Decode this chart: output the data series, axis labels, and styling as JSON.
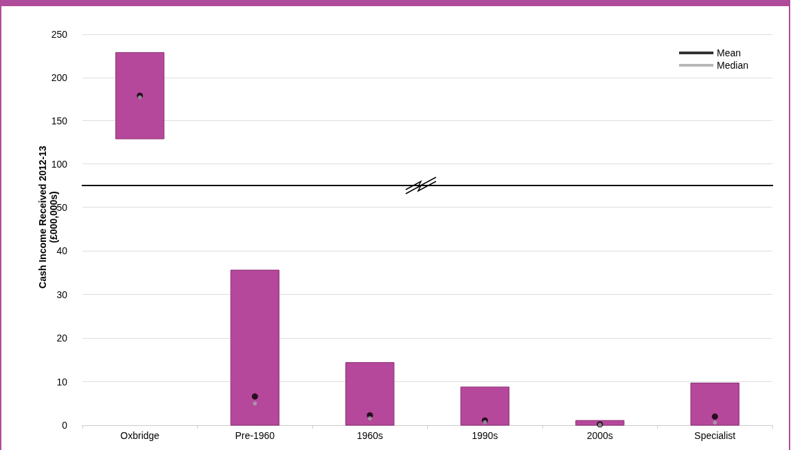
{
  "chart_data": [
    {
      "type": "bar",
      "categories": [
        "Oxbridge",
        "Pre-1960",
        "1960s",
        "1990s",
        "2000s",
        "Specialist"
      ],
      "tick_labels": "y",
      "ylim": [
        75,
        250
      ],
      "yticks": [
        100,
        150,
        200,
        250
      ],
      "grid": "y",
      "legend": "top right",
      "series": [
        {
          "type": "bar",
          "color": "#b5489b",
          "base": [
            129,
            null,
            null,
            null,
            null,
            null
          ],
          "values": [
            100,
            null,
            null,
            null,
            null,
            null
          ]
        },
        {
          "type": "scatter",
          "name": "Mean",
          "color": "#000000",
          "marker": "circle",
          "x": [
            "Oxbridge"
          ],
          "values": [
            179
          ]
        },
        {
          "type": "scatter",
          "name": "Median",
          "color": "#a6a6a6",
          "marker": "circle",
          "x": [
            "Oxbridge"
          ],
          "values": [
            177
          ]
        }
      ]
    },
    {
      "type": "bar",
      "categories": [
        "Oxbridge",
        "Pre-1960",
        "1960s",
        "1990s",
        "2000s",
        "Specialist"
      ],
      "ylabel": "Cash Income Received 2012-13 (£000,000s)",
      "ylim": [
        0,
        55
      ],
      "yticks": [
        0,
        10,
        20,
        30,
        40,
        50
      ],
      "grid": "y",
      "series": [
        {
          "type": "bar",
          "color": "#b5489b",
          "base": [
            null,
            0,
            0,
            0,
            0,
            0
          ],
          "values": [
            null,
            35.6,
            14.4,
            8.8,
            1.1,
            9.7
          ]
        },
        {
          "type": "scatter",
          "color": "#000000",
          "marker": "circle",
          "x": [
            "Pre-1960",
            "1960s",
            "1990s",
            "2000s",
            "Specialist"
          ],
          "values": [
            6.6,
            2.3,
            1.1,
            0.2,
            2.0
          ]
        },
        {
          "type": "scatter",
          "color": "#a6a6a6",
          "marker": "circle",
          "x": [
            "Pre-1960",
            "1960s",
            "1990s",
            "2000s",
            "Specialist"
          ],
          "values": [
            5.0,
            1.6,
            0.7,
            0.1,
            0.6
          ]
        }
      ]
    }
  ]
}
